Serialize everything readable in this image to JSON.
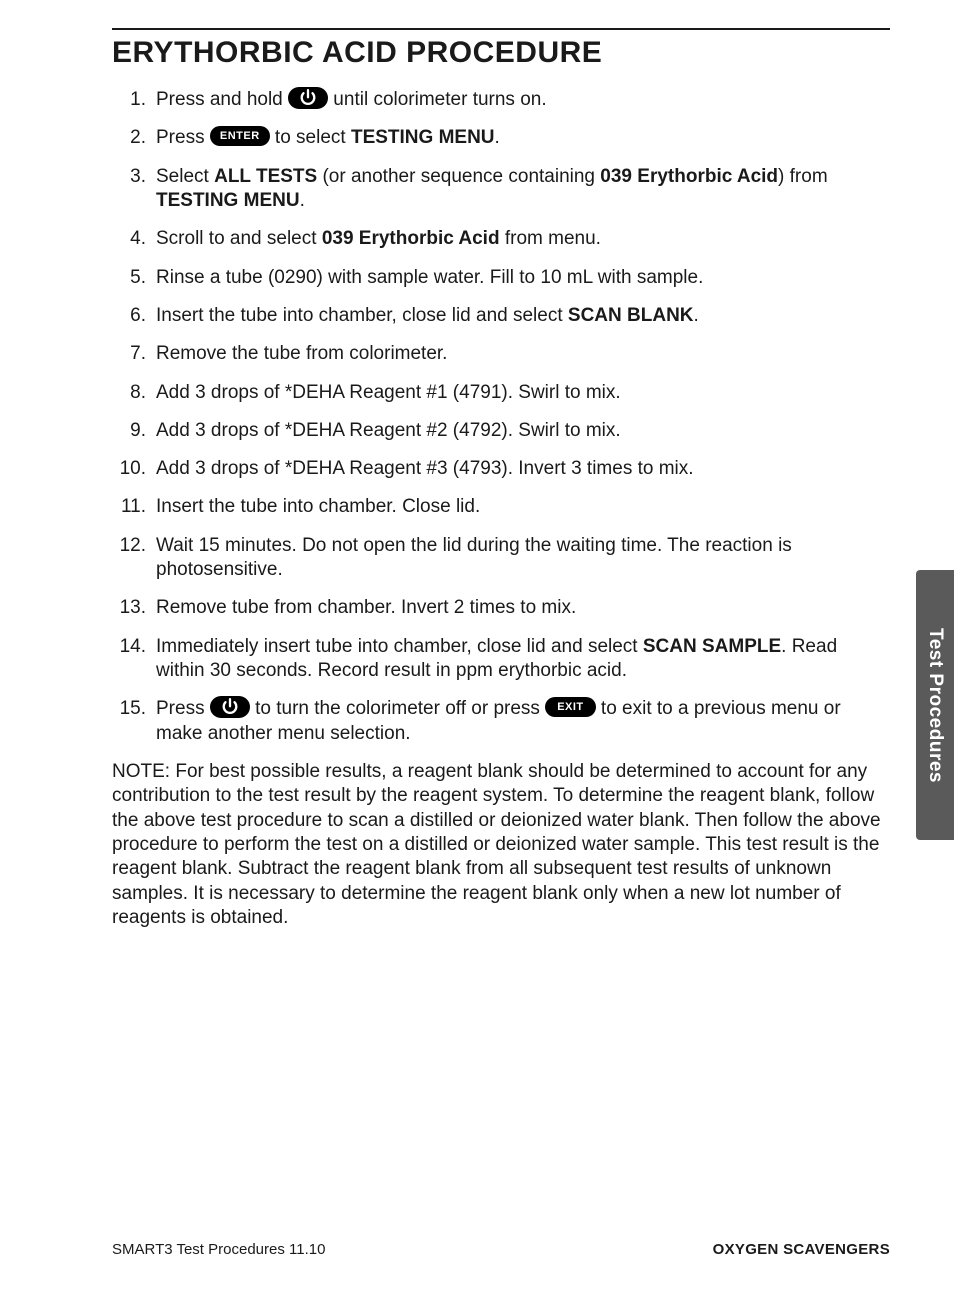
{
  "title": "ERYTHORBIC ACID PROCEDURE",
  "sideTab": "Test Procedures",
  "footer": {
    "left": "SMART3 Test Procedures 11.10",
    "right": "OXYGEN SCAVENGERS"
  },
  "buttons": {
    "enter": "ENTER",
    "exit": "EXIT"
  },
  "steps": [
    {
      "segments": [
        {
          "t": "Press and hold "
        },
        {
          "icon": "power"
        },
        {
          "t": " until colorimeter turns on."
        }
      ]
    },
    {
      "segments": [
        {
          "t": "Press "
        },
        {
          "icon": "enter"
        },
        {
          "t": " to select "
        },
        {
          "t": "TESTING MENU",
          "bold": true
        },
        {
          "t": "."
        }
      ]
    },
    {
      "segments": [
        {
          "t": "Select "
        },
        {
          "t": "ALL TESTS",
          "bold": true
        },
        {
          "t": " (or another sequence containing "
        },
        {
          "t": "039 Erythorbic Acid",
          "bold": true
        },
        {
          "t": ") from "
        },
        {
          "t": "TESTING MENU",
          "bold": true
        },
        {
          "t": "."
        }
      ]
    },
    {
      "segments": [
        {
          "t": "Scroll to and select "
        },
        {
          "t": "039 Erythorbic Acid",
          "bold": true
        },
        {
          "t": "  from menu."
        }
      ]
    },
    {
      "segments": [
        {
          "t": "Rinse a tube (0290) with sample water. Fill to 10 mL with sample."
        }
      ]
    },
    {
      "segments": [
        {
          "t": "Insert the tube into chamber, close lid and select "
        },
        {
          "t": "SCAN BLANK",
          "bold": true
        },
        {
          "t": "."
        }
      ]
    },
    {
      "segments": [
        {
          "t": "Remove the tube from colorimeter."
        }
      ]
    },
    {
      "segments": [
        {
          "t": "Add 3 drops of *DEHA Reagent #1 (4791). Swirl to mix."
        }
      ]
    },
    {
      "segments": [
        {
          "t": "Add 3 drops of *DEHA Reagent #2 (4792). Swirl to mix."
        }
      ]
    },
    {
      "segments": [
        {
          "t": "Add 3 drops of *DEHA Reagent #3 (4793). Invert 3 times to mix."
        }
      ]
    },
    {
      "segments": [
        {
          "t": "Insert the tube into chamber. Close lid."
        }
      ]
    },
    {
      "segments": [
        {
          "t": "Wait 15 minutes. Do not open the lid during the waiting time. The reaction is photosensitive."
        }
      ]
    },
    {
      "segments": [
        {
          "t": "Remove tube from chamber. Invert 2 times to mix."
        }
      ]
    },
    {
      "segments": [
        {
          "t": "Immediately insert tube into chamber, close lid and select "
        },
        {
          "t": "SCAN SAMPLE",
          "bold": true
        },
        {
          "t": ". Read within 30 seconds. Record result in ppm erythorbic acid."
        }
      ]
    },
    {
      "segments": [
        {
          "t": "Press "
        },
        {
          "icon": "power"
        },
        {
          "t": " to turn the colorimeter off or press "
        },
        {
          "icon": "exit"
        },
        {
          "t": " to exit to a previous menu or make another menu selection."
        }
      ]
    }
  ],
  "note": "NOTE: For best possible results, a reagent blank should be determined to account for any contribution to the test result by the reagent system. To determine the reagent blank, follow the above test procedure to scan a distilled or deionized water blank. Then follow the above procedure to perform the test on a distilled or deionized water sample. This test result is the reagent blank. Subtract the reagent blank from all subsequent test results of unknown samples. It is necessary to determine the reagent blank only when a new lot number of reagents is obtained."
}
